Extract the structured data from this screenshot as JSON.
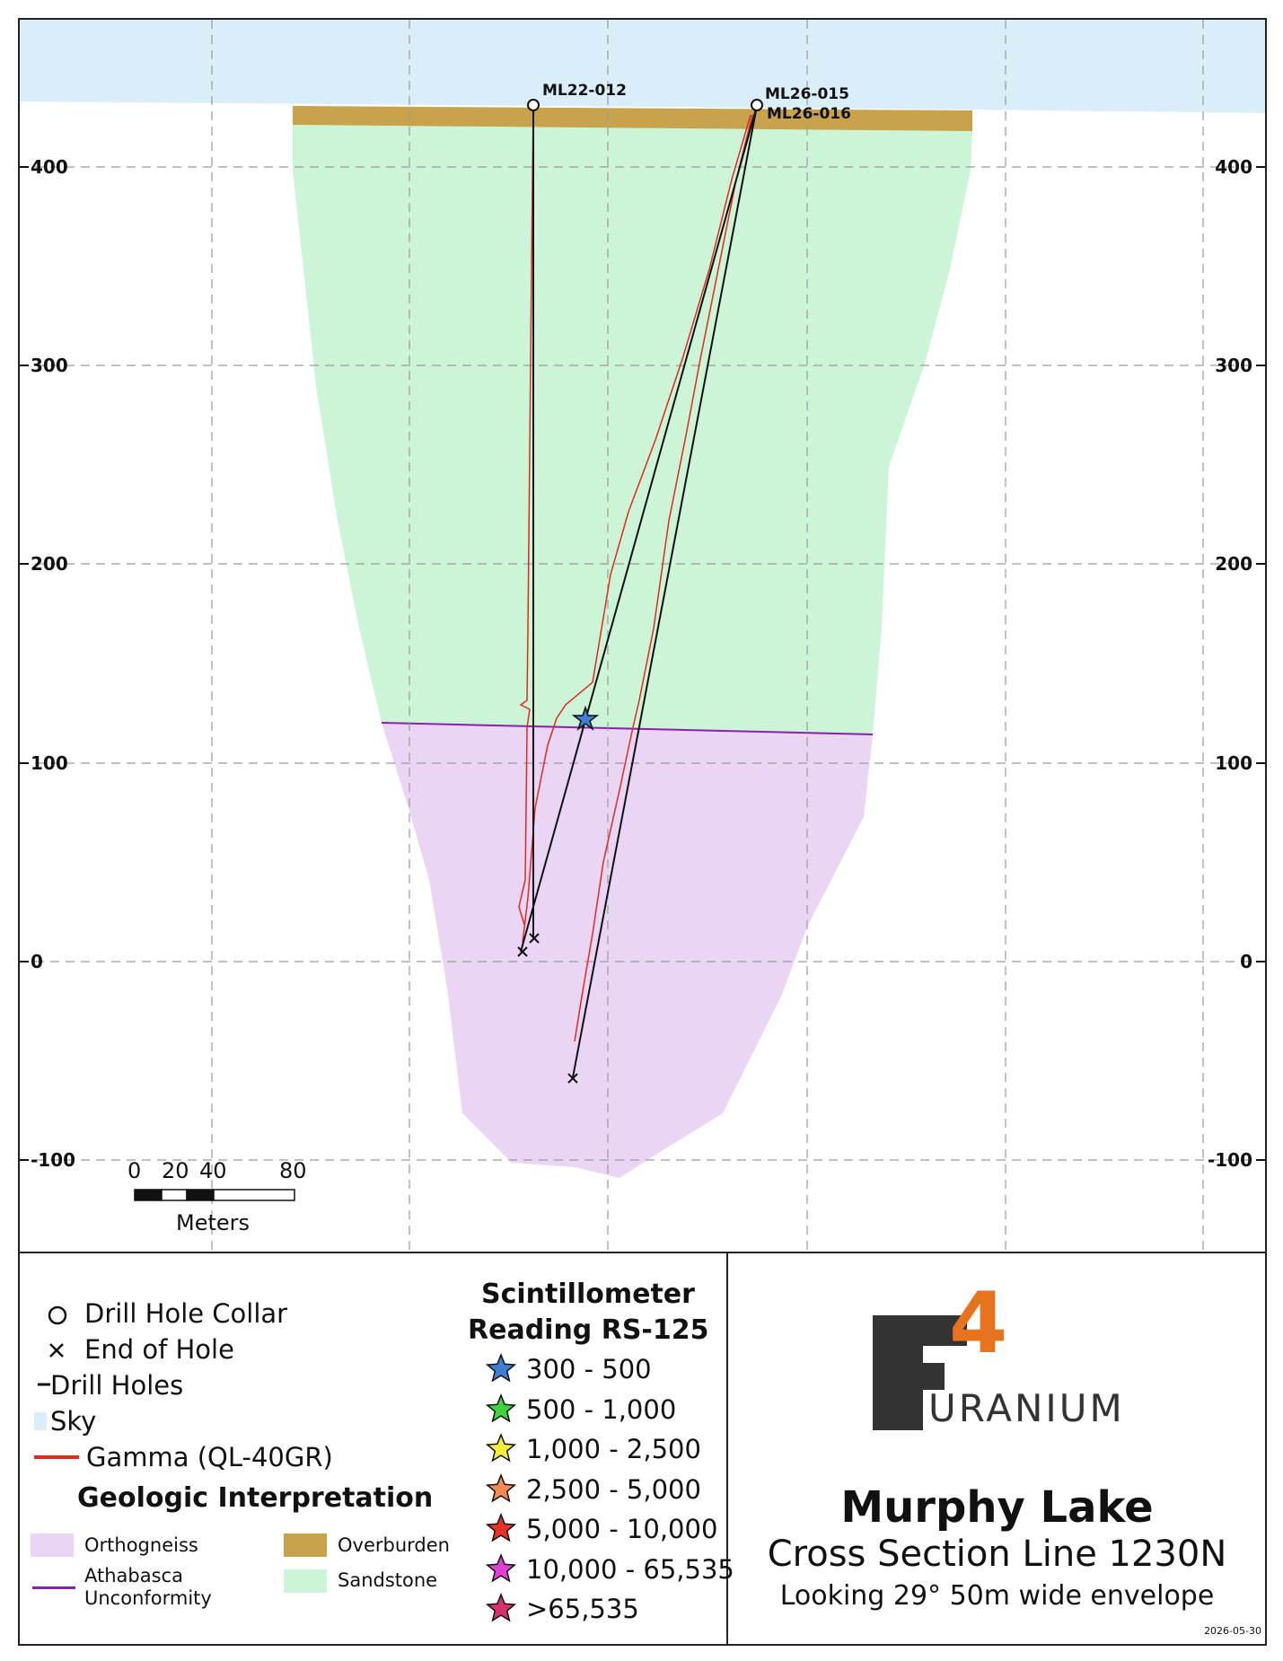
{
  "section": {
    "y_axis_ticks": [
      "400",
      "300",
      "200",
      "100",
      "0",
      "-100"
    ],
    "drill_holes": [
      {
        "name": "ML22-012"
      },
      {
        "name": "ML26-015"
      },
      {
        "name": "ML26-016"
      }
    ],
    "scale_bar": {
      "ticks": [
        "0",
        "20",
        "40",
        "80"
      ],
      "unit": "Meters"
    }
  },
  "legend": {
    "symbols": [
      {
        "label": "Drill Hole Collar",
        "icon": "circle-icon"
      },
      {
        "label": "End of Hole",
        "icon": "x-icon"
      },
      {
        "label": "Drill Holes",
        "icon": "line-icon"
      },
      {
        "label": "Sky",
        "icon": "sky-swatch"
      },
      {
        "label": "Gamma (QL-40GR)",
        "icon": "red-line-icon"
      }
    ],
    "geologic_title": "Geologic Interpretation",
    "geology": [
      {
        "label": "Orthogneiss",
        "color": "#ead5f5"
      },
      {
        "label": "Overburden",
        "color": "#c9a24c"
      },
      {
        "label": "Athabasca",
        "label2": "Unconformity",
        "color": "#8a1fb0"
      },
      {
        "label": "Sandstone",
        "color": "#ccf5d7"
      }
    ]
  },
  "scintillometer": {
    "title_line1": "Scintillometer",
    "title_line2": "Reading RS-125",
    "ranges": [
      {
        "label": "300 - 500",
        "color": "#3d7fd6"
      },
      {
        "label": "500 - 1,000",
        "color": "#3fd33f"
      },
      {
        "label": "1,000 - 2,500",
        "color": "#f4ee3a"
      },
      {
        "label": "2,500 - 5,000",
        "color": "#f28a52"
      },
      {
        "label": "5,000 - 10,000",
        "color": "#e8332b"
      },
      {
        "label": "10,000 - 65,535",
        "color": "#e23fd6"
      },
      {
        "label": ">65,535",
        "color": "#d6336e"
      }
    ]
  },
  "title_block": {
    "logo_f": "F",
    "logo_4": "4",
    "logo_word": "URANIUM",
    "title": "Murphy Lake",
    "subtitle": "Cross Section Line 1230N",
    "note": "Looking 29° 50m wide envelope",
    "date": "2026-05-30"
  },
  "colors": {
    "sky": "#d9eef8",
    "sandstone": "#ccf5d7",
    "orthogneiss": "#ead5f5",
    "overburden": "#c9a24c",
    "unconformity": "#8a1fb0",
    "gamma": "#e02a1e",
    "drill_hole": "#111111",
    "logo_dark": "#333333",
    "logo_accent": "#e8731e"
  }
}
